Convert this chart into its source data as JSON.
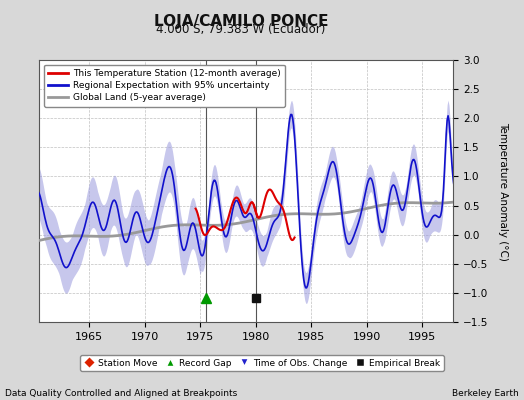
{
  "title": "LOJA/CAMILO PONCE",
  "subtitle": "4.000 S, 79.383 W (Ecuador)",
  "ylabel": "Temperature Anomaly (°C)",
  "xlabel_left": "Data Quality Controlled and Aligned at Breakpoints",
  "xlabel_right": "Berkeley Earth",
  "ylim": [
    -1.5,
    3.0
  ],
  "xlim": [
    1960.5,
    1997.8
  ],
  "yticks": [
    -1.5,
    -1.0,
    -0.5,
    0.0,
    0.5,
    1.0,
    1.5,
    2.0,
    2.5,
    3.0
  ],
  "xticks": [
    1965,
    1970,
    1975,
    1980,
    1985,
    1990,
    1995
  ],
  "background_color": "#d8d8d8",
  "plot_bg_color": "#ffffff",
  "grid_color": "#c0c0c0",
  "region_fill_color": "#9999dd",
  "region_line_color": "#1111cc",
  "station_line_color": "#dd0000",
  "global_line_color": "#999999",
  "marker_record_gap_x": 1975.5,
  "marker_empirical_break_x": 1980.0,
  "marker_y": -1.08,
  "vline1_x": 1975.5,
  "vline2_x": 1980.0,
  "station_start1": 1974.5,
  "station_end1": 1980.2,
  "station_start2": 1979.8,
  "station_end2": 1983.5
}
